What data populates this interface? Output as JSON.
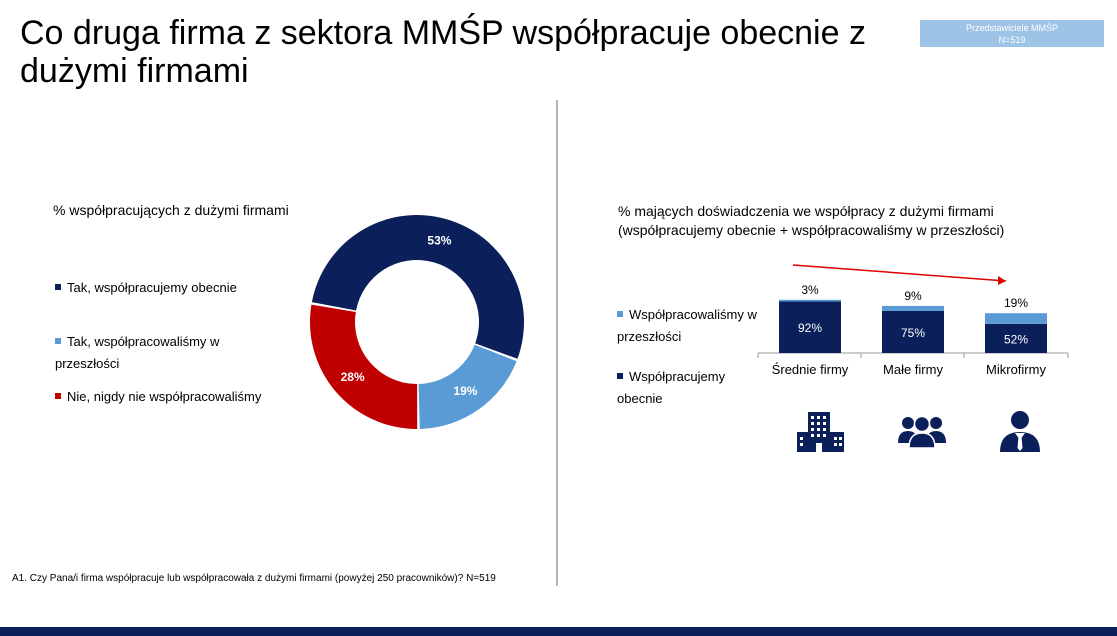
{
  "title": "Co druga firma z sektora MMŚP współpracuje obecnie z dużymi firmami",
  "badge": {
    "line1": "Przedstawiciele MMŚP",
    "line2": "N=519"
  },
  "colors": {
    "navy": "#0b1f5b",
    "light_blue": "#5b9bd5",
    "red": "#c00000",
    "badge": "#9dc3e6",
    "arrow": "#e00000"
  },
  "left": {
    "subtitle": "% współpracujących z dużymi firmami",
    "legend": [
      {
        "label": "Tak, współpracujemy obecnie",
        "color": "#0b1f5b"
      },
      {
        "label": "Tak, współpracowaliśmy w przeszłości",
        "color": "#5b9bd5"
      },
      {
        "label": "Nie, nigdy nie współpracowaliśmy",
        "color": "#c00000"
      }
    ]
  },
  "right": {
    "subtitle_line1": "% mających doświadczenia we współpracy z dużymi firmami",
    "subtitle_line2": "(współpracujemy obecnie + współpracowaliśmy w przeszłości)",
    "legend": [
      {
        "label": "Współpracowaliśmy w przeszłości",
        "color": "#5b9bd5"
      },
      {
        "label": "Współpracujemy obecnie",
        "color": "#0b1f5b"
      }
    ],
    "icons": [
      "building-icon",
      "group-icon",
      "person-icon"
    ]
  },
  "footnote": "A1. Czy Pana/i firma współpracuje lub współpracowała z dużymi firmami (powyżej 250 pracowników)? N=519",
  "chart_data": [
    {
      "type": "pie",
      "title": "% współpracujących z dużymi firmami",
      "donut": true,
      "slices": [
        {
          "label": "Tak, współpracujemy obecnie",
          "value": 53,
          "display": "53%",
          "color": "#0b1f5b"
        },
        {
          "label": "Tak, współpracowaliśmy w przeszłości",
          "value": 19,
          "display": "19%",
          "color": "#5b9bd5"
        },
        {
          "label": "Nie, nigdy nie współpracowaliśmy",
          "value": 28,
          "display": "28%",
          "color": "#c00000"
        }
      ]
    },
    {
      "type": "bar",
      "stacked": true,
      "title": "% mających doświadczenia we współpracy z dużymi firmami (współpracujemy obecnie + współpracowaliśmy w przeszłości)",
      "categories": [
        "Średnie firmy",
        "Małe firmy",
        "Mikrofirmy"
      ],
      "series": [
        {
          "name": "Współpracujemy obecnie",
          "values": [
            92,
            75,
            52
          ],
          "labels": [
            "92%",
            "75%",
            "52%"
          ],
          "color": "#0b1f5b"
        },
        {
          "name": "Współpracowaliśmy w przeszłości",
          "values": [
            3,
            9,
            19
          ],
          "labels": [
            "3%",
            "9%",
            "19%"
          ],
          "color": "#5b9bd5"
        }
      ],
      "ylim": [
        0,
        100
      ],
      "trend_arrow": "decreasing",
      "legend": "left"
    }
  ]
}
